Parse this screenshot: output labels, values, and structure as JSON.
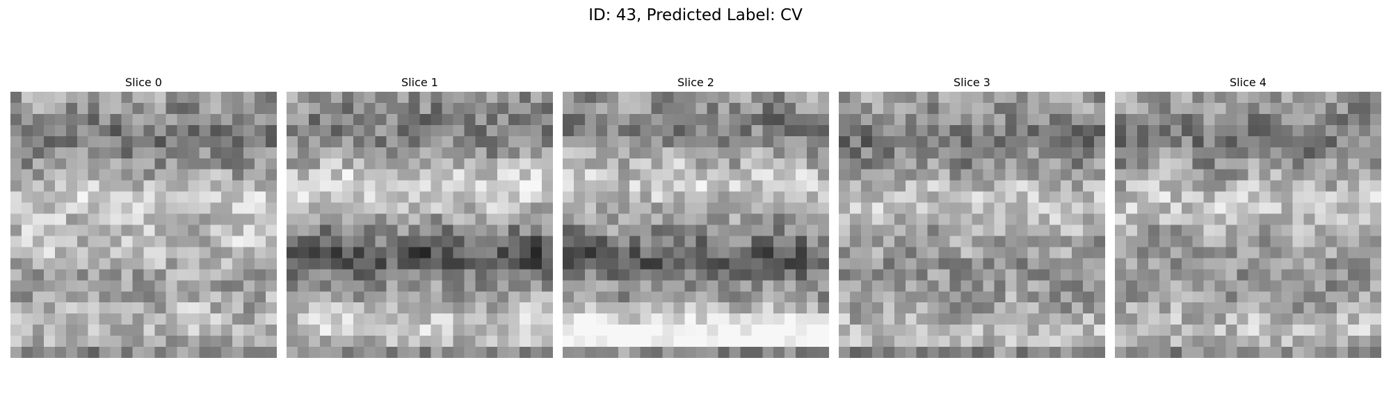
{
  "figure": {
    "title": "ID: 43, Predicted Label: CV"
  },
  "slices": [
    {
      "label": "Slice 0",
      "seed": 11,
      "bands": [
        [
          0.15,
          -0.15
        ],
        [
          0.4,
          0.18
        ],
        [
          0.58,
          0.12
        ],
        [
          0.88,
          0.1
        ]
      ]
    },
    {
      "label": "Slice 1",
      "seed": 23,
      "bands": [
        [
          0.12,
          -0.12
        ],
        [
          0.36,
          0.22
        ],
        [
          0.62,
          -0.28
        ],
        [
          0.9,
          0.15
        ]
      ]
    },
    {
      "label": "Slice 2",
      "seed": 37,
      "bands": [
        [
          0.1,
          -0.12
        ],
        [
          0.34,
          0.18
        ],
        [
          0.63,
          -0.25
        ],
        [
          0.94,
          0.45
        ]
      ]
    },
    {
      "label": "Slice 3",
      "seed": 41,
      "bands": [
        [
          0.16,
          -0.15
        ],
        [
          0.42,
          0.16
        ],
        [
          0.7,
          -0.05
        ],
        [
          0.92,
          0.12
        ]
      ]
    },
    {
      "label": "Slice 4",
      "seed": 53,
      "bands": [
        [
          0.15,
          -0.14
        ],
        [
          0.42,
          0.16
        ],
        [
          0.7,
          -0.05
        ],
        [
          0.92,
          0.12
        ]
      ]
    }
  ]
}
